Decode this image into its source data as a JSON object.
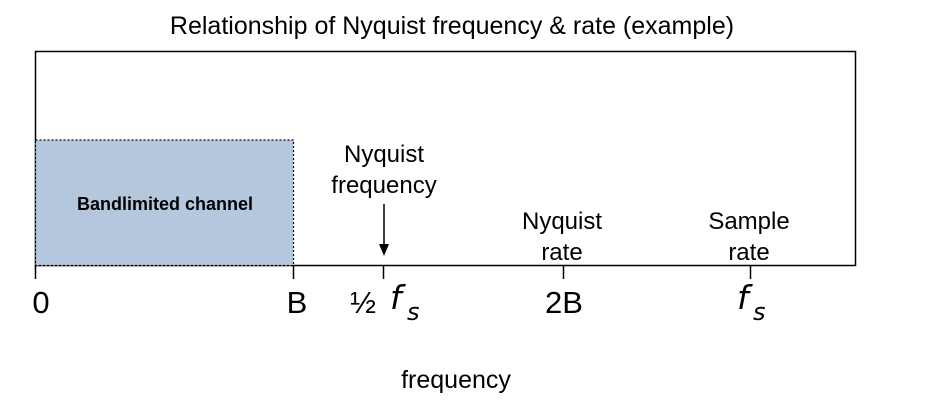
{
  "diagram": {
    "title": "Relationship of Nyquist frequency & rate (example)",
    "channel_label": "Bandlimited channel",
    "nyquist_frequency_label": [
      "Nyquist",
      "frequency"
    ],
    "nyquist_rate_label": [
      "Nyquist",
      "rate"
    ],
    "sample_rate_label": [
      "Sample",
      "rate"
    ],
    "x_axis_label": "frequency",
    "ticks": {
      "zero": "0",
      "b": "B",
      "half": "½",
      "fs_f": "f",
      "fs_sub": "s",
      "two_b": "2B"
    },
    "colors": {
      "channel_fill": "#b5c7dd",
      "stroke": "#000000"
    }
  }
}
